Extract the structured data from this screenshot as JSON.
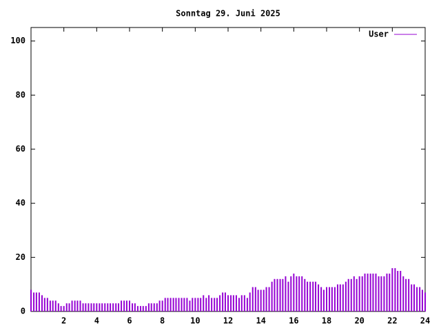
{
  "chart_data": {
    "type": "impulse",
    "title": "Sonntag 29. Juni 2025",
    "series": [
      {
        "name": "User",
        "color": "#9400d3",
        "x": [
          0,
          0.17,
          0.33,
          0.5,
          0.67,
          0.83,
          1,
          1.17,
          1.33,
          1.5,
          1.67,
          1.83,
          2,
          2.17,
          2.33,
          2.5,
          2.67,
          2.83,
          3,
          3.17,
          3.33,
          3.5,
          3.67,
          3.83,
          4,
          4.17,
          4.33,
          4.5,
          4.67,
          4.83,
          5,
          5.17,
          5.33,
          5.5,
          5.67,
          5.83,
          6,
          6.17,
          6.33,
          6.5,
          6.67,
          6.83,
          7,
          7.17,
          7.33,
          7.5,
          7.67,
          7.83,
          8,
          8.17,
          8.33,
          8.5,
          8.67,
          8.83,
          9,
          9.17,
          9.33,
          9.5,
          9.67,
          9.83,
          10,
          10.17,
          10.33,
          10.5,
          10.67,
          10.83,
          11,
          11.17,
          11.33,
          11.5,
          11.67,
          11.83,
          12,
          12.17,
          12.33,
          12.5,
          12.67,
          12.83,
          13,
          13.17,
          13.33,
          13.5,
          13.67,
          13.83,
          14,
          14.17,
          14.33,
          14.5,
          14.67,
          14.83,
          15,
          15.17,
          15.33,
          15.5,
          15.67,
          15.83,
          16,
          16.17,
          16.33,
          16.5,
          16.67,
          16.83,
          17,
          17.17,
          17.33,
          17.5,
          17.67,
          17.83,
          18,
          18.17,
          18.33,
          18.5,
          18.67,
          18.83,
          19,
          19.17,
          19.33,
          19.5,
          19.67,
          19.83,
          20,
          20.17,
          20.33,
          20.5,
          20.67,
          20.83,
          21,
          21.17,
          21.33,
          21.5,
          21.67,
          21.83,
          22,
          22.17,
          22.33,
          22.5,
          22.67,
          22.83,
          23,
          23.17,
          23.33,
          23.5,
          23.67,
          23.83,
          24
        ],
        "values": [
          8,
          7,
          7,
          7,
          6,
          5,
          5,
          4,
          4,
          4,
          3,
          2,
          2,
          3,
          3,
          4,
          4,
          4,
          4,
          3,
          3,
          3,
          3,
          3,
          3,
          3,
          3,
          3,
          3,
          3,
          3,
          3,
          3,
          4,
          4,
          4,
          4,
          3,
          3,
          2,
          2,
          2,
          2,
          3,
          3,
          3,
          3,
          4,
          4,
          5,
          5,
          5,
          5,
          5,
          5,
          5,
          5,
          5,
          4,
          5,
          5,
          5,
          5,
          6,
          5,
          6,
          5,
          5,
          5,
          6,
          7,
          7,
          6,
          6,
          6,
          6,
          5,
          6,
          6,
          5,
          7,
          9,
          9,
          8,
          8,
          8,
          9,
          9,
          11,
          12,
          12,
          12,
          12,
          13,
          11,
          13,
          14,
          13,
          13,
          13,
          12,
          11,
          11,
          11,
          11,
          10,
          9,
          8,
          9,
          9,
          9,
          9,
          10,
          10,
          10,
          11,
          12,
          12,
          13,
          12,
          13,
          13,
          14,
          14,
          14,
          14,
          14,
          13,
          13,
          13,
          14,
          14,
          16,
          16,
          15,
          15,
          13,
          12,
          12,
          10,
          10,
          9,
          9,
          8,
          7
        ]
      }
    ],
    "xlim": [
      0,
      24
    ],
    "xticks": [
      2,
      4,
      6,
      8,
      10,
      12,
      14,
      16,
      18,
      20,
      22,
      24
    ],
    "ylim": [
      0,
      105
    ],
    "yticks": [
      0,
      20,
      40,
      60,
      80,
      100
    ]
  }
}
